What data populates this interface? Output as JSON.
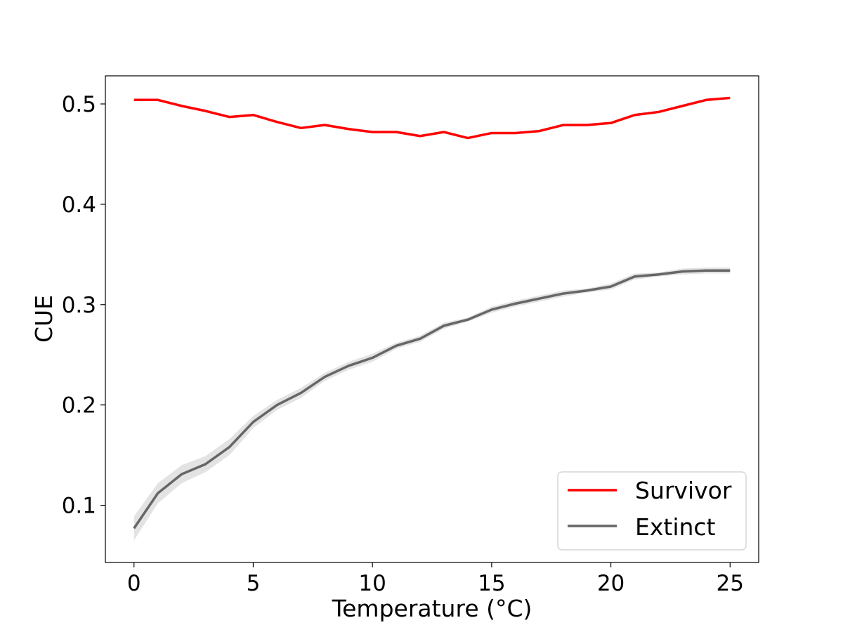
{
  "chart_data": {
    "type": "line",
    "xlabel": "Temperature (°C)",
    "ylabel": "CUE",
    "xlim": [
      -1.2,
      26.2
    ],
    "ylim": [
      0.043,
      0.528
    ],
    "xticks": [
      0,
      5,
      10,
      15,
      20,
      25
    ],
    "yticks": [
      0.1,
      0.2,
      0.3,
      0.4,
      0.5
    ],
    "grid": false,
    "legend_position": "bottom-right",
    "x": [
      0,
      1,
      2,
      3,
      4,
      5,
      6,
      7,
      8,
      9,
      10,
      11,
      12,
      13,
      14,
      15,
      16,
      17,
      18,
      19,
      20,
      21,
      22,
      23,
      24,
      25
    ],
    "series": [
      {
        "name": "Survivor",
        "color": "#ff0000",
        "values": [
          0.504,
          0.504,
          0.498,
          0.493,
          0.487,
          0.489,
          0.482,
          0.476,
          0.479,
          0.475,
          0.472,
          0.472,
          0.468,
          0.472,
          0.466,
          0.471,
          0.471,
          0.473,
          0.479,
          0.479,
          0.481,
          0.489,
          0.492,
          0.498,
          0.504,
          0.506
        ]
      },
      {
        "name": "Extinct",
        "color": "#666666",
        "band_color": "#d9d9d9",
        "values": [
          0.077,
          0.112,
          0.131,
          0.141,
          0.158,
          0.183,
          0.2,
          0.212,
          0.228,
          0.239,
          0.247,
          0.259,
          0.266,
          0.279,
          0.285,
          0.295,
          0.301,
          0.306,
          0.311,
          0.314,
          0.318,
          0.328,
          0.33,
          0.333,
          0.334,
          0.334
        ],
        "lower": [
          0.065,
          0.102,
          0.122,
          0.133,
          0.15,
          0.177,
          0.195,
          0.207,
          0.224,
          0.235,
          0.243,
          0.256,
          0.263,
          0.276,
          0.283,
          0.292,
          0.298,
          0.303,
          0.308,
          0.312,
          0.315,
          0.325,
          0.328,
          0.33,
          0.331,
          0.331
        ],
        "upper": [
          0.089,
          0.122,
          0.14,
          0.149,
          0.166,
          0.189,
          0.205,
          0.217,
          0.232,
          0.243,
          0.251,
          0.262,
          0.269,
          0.282,
          0.287,
          0.298,
          0.304,
          0.309,
          0.314,
          0.316,
          0.321,
          0.331,
          0.332,
          0.336,
          0.337,
          0.337
        ]
      }
    ]
  }
}
